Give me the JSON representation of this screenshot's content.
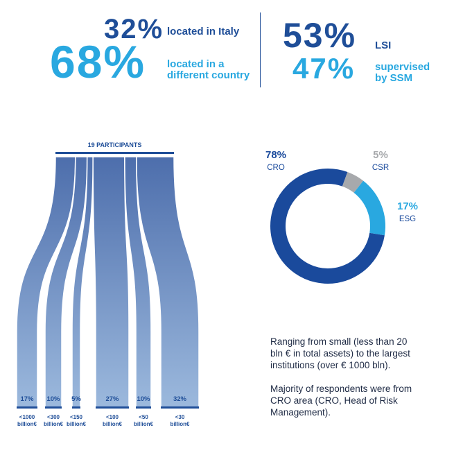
{
  "stats": {
    "left": [
      {
        "value": "32%",
        "label": "located in Italy"
      },
      {
        "value": "68%",
        "label_lines": [
          "located in a",
          "different country"
        ]
      }
    ],
    "right": [
      {
        "value": "53%",
        "label": "LSI"
      },
      {
        "value": "47%",
        "label_lines": [
          "supervised",
          "by SSM"
        ]
      }
    ]
  },
  "chart_data": [
    {
      "type": "sankey",
      "title": "19 PARTICIPANTS",
      "categories": [
        "<1000 billion€",
        "<300 billion€",
        "<150 billion€",
        "<100 billion€",
        "<50 billion€",
        "<30 billion€"
      ],
      "category_lines": [
        [
          "<1000",
          "billion€"
        ],
        [
          "<300",
          "billion€"
        ],
        [
          "<150",
          "billion€"
        ],
        [
          "<100",
          "billion€"
        ],
        [
          "<50",
          "billion€"
        ],
        [
          "<30",
          "billion€"
        ]
      ],
      "values": [
        17,
        10,
        5,
        27,
        10,
        32
      ],
      "value_labels": [
        "17%",
        "10%",
        "5%",
        "27%",
        "10%",
        "32%"
      ],
      "colors": {
        "top": "#4d6eac",
        "bottom": "#9cb9dd",
        "bracket": "#1f4e98"
      }
    },
    {
      "type": "pie",
      "variant": "donut",
      "labels": [
        "CRO",
        "CSR",
        "ESG"
      ],
      "values": [
        78,
        5,
        17
      ],
      "value_labels": [
        "78%",
        "5%",
        "17%"
      ],
      "colors": [
        "#1a4a9c",
        "#a7a9ac",
        "#29a8e0"
      ]
    }
  ],
  "description": {
    "para1": [
      "Ranging from small (less than 20",
      "bln € in total assets) to the largest",
      "institutions (over € 1000 bln)."
    ],
    "para2": [
      "Majority of respondents were from",
      "CRO area (CRO, Head of Risk",
      "Management)."
    ]
  }
}
